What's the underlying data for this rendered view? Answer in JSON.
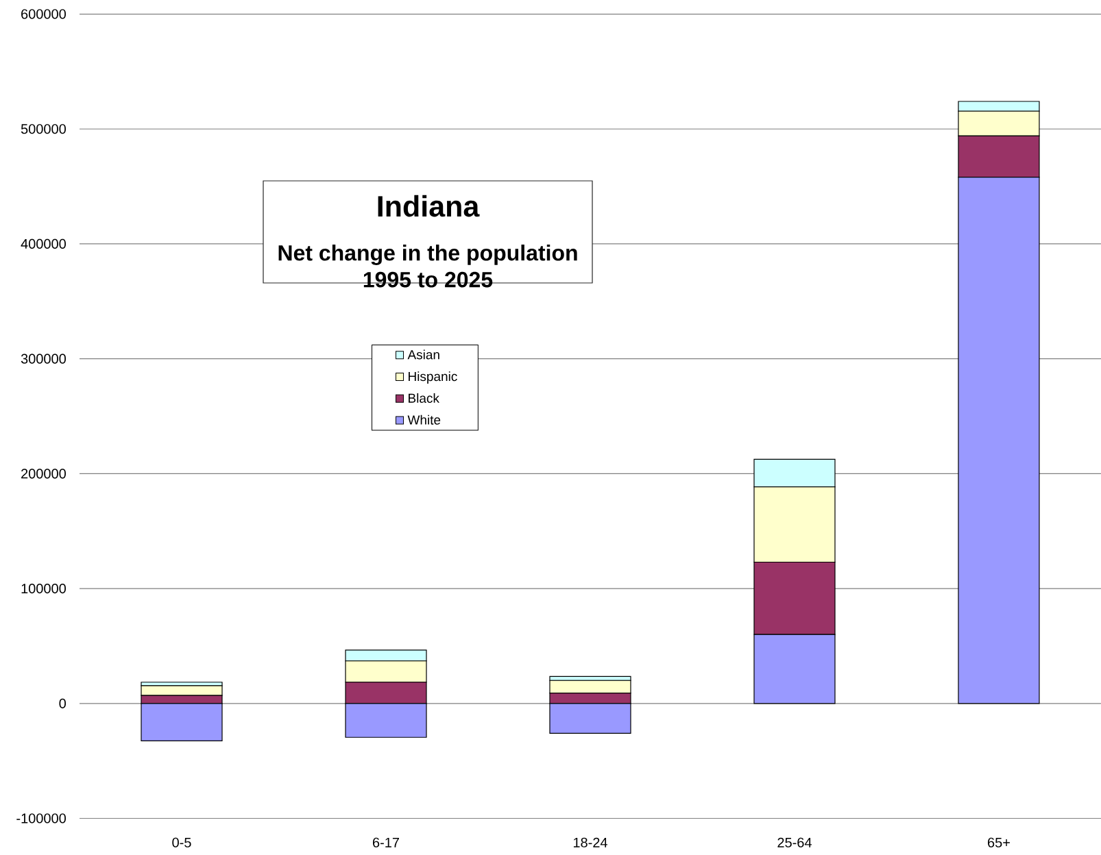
{
  "chart_data": {
    "type": "bar",
    "title": "Indiana",
    "subtitle": "Net change in the population 1995 to 2025",
    "categories": [
      "0-5",
      "6-17",
      "18-24",
      "25-64",
      "65+"
    ],
    "stacked": true,
    "series": [
      {
        "name": "White",
        "color": "#9999ff",
        "values": [
          -32500,
          -29500,
          -26000,
          60000,
          458000
        ]
      },
      {
        "name": "Black",
        "color": "#993366",
        "values": [
          7000,
          18500,
          9000,
          63000,
          36000
        ]
      },
      {
        "name": "Hispanic",
        "color": "#ffffcc",
        "values": [
          8500,
          18500,
          11000,
          65500,
          21500
        ]
      },
      {
        "name": "Asian",
        "color": "#ccffff",
        "values": [
          3000,
          9500,
          3500,
          24000,
          8500
        ]
      }
    ],
    "ylim": [
      -100000,
      600000
    ],
    "yticks": [
      -100000,
      0,
      100000,
      200000,
      300000,
      400000,
      500000,
      600000
    ],
    "grid": "y",
    "legend": "left"
  }
}
